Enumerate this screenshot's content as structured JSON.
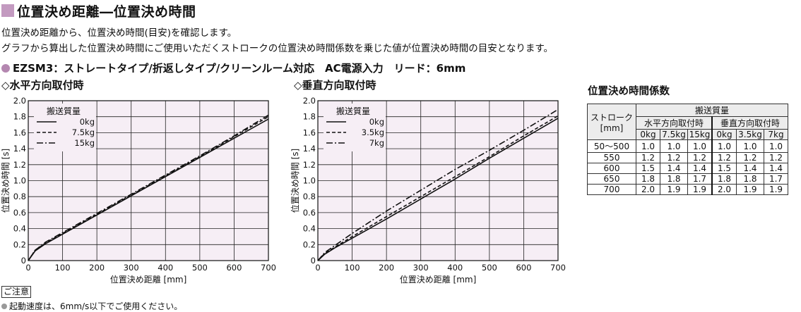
{
  "header": {
    "title": "位置決め距離―位置決め時間",
    "desc1": "位置決め距離から、位置決め時間(目安)を確認します。",
    "desc2": "グラフから算出した位置決め時間にご使用いただくストロークの位置決め時間係数を乗じた値が位置決め時間の目安となります。",
    "model_line": "EZSM3：ストレートタイプ/折返しタイプ/クリーンルーム対応　AC電源入力　リード：6mm"
  },
  "colors": {
    "accent": "#c39ac0",
    "plot_bg": "#f6eef5"
  },
  "chart_data": [
    {
      "type": "line",
      "title": "◇水平方向取付時",
      "xlabel": "位置決め距離 [mm]",
      "ylabel": "位置決め時間 [s]",
      "xlim": [
        0,
        700
      ],
      "ylim": [
        0,
        2.0
      ],
      "xticks": [
        "0",
        "100",
        "200",
        "300",
        "400",
        "500",
        "600",
        "700"
      ],
      "yticks": [
        "0",
        "0.2",
        "0.4",
        "0.6",
        "0.8",
        "1.0",
        "1.2",
        "1.4",
        "1.6",
        "1.8",
        "2.0"
      ],
      "grid": true,
      "legend_title": "搬送質量",
      "legend_position": "top-left",
      "series": [
        {
          "name": "0kg",
          "style": "solid",
          "x": [
            0,
            20,
            50,
            100,
            200,
            300,
            400,
            500,
            600,
            700
          ],
          "y": [
            0,
            0.12,
            0.21,
            0.33,
            0.57,
            0.81,
            1.05,
            1.29,
            1.53,
            1.77
          ]
        },
        {
          "name": "7.5kg",
          "style": "dashed",
          "x": [
            0,
            20,
            50,
            100,
            200,
            300,
            400,
            500,
            600,
            700
          ],
          "y": [
            0,
            0.13,
            0.22,
            0.34,
            0.58,
            0.82,
            1.06,
            1.3,
            1.55,
            1.8
          ]
        },
        {
          "name": "15kg",
          "style": "dashdot",
          "x": [
            0,
            20,
            50,
            100,
            200,
            300,
            400,
            500,
            600,
            700
          ],
          "y": [
            0,
            0.13,
            0.23,
            0.35,
            0.59,
            0.83,
            1.07,
            1.31,
            1.56,
            1.82
          ]
        }
      ]
    },
    {
      "type": "line",
      "title": "◇垂直方向取付時",
      "xlabel": "位置決め距離 [mm]",
      "ylabel": "位置決め時間 [s]",
      "xlim": [
        0,
        700
      ],
      "ylim": [
        0,
        2.0
      ],
      "xticks": [
        "0",
        "100",
        "200",
        "300",
        "400",
        "500",
        "600",
        "700"
      ],
      "yticks": [
        "0",
        "0.2",
        "0.4",
        "0.6",
        "0.8",
        "1.0",
        "1.2",
        "1.4",
        "1.6",
        "1.8",
        "2.0"
      ],
      "grid": true,
      "legend_title": "搬送質量",
      "legend_position": "top-left",
      "series": [
        {
          "name": "0kg",
          "style": "solid",
          "x": [
            0,
            20,
            50,
            100,
            200,
            300,
            400,
            500,
            600,
            700
          ],
          "y": [
            0,
            0.08,
            0.16,
            0.28,
            0.52,
            0.77,
            1.02,
            1.28,
            1.53,
            1.78
          ]
        },
        {
          "name": "3.5kg",
          "style": "dashed",
          "x": [
            0,
            20,
            50,
            100,
            200,
            300,
            400,
            500,
            600,
            700
          ],
          "y": [
            0,
            0.09,
            0.17,
            0.3,
            0.55,
            0.8,
            1.05,
            1.3,
            1.56,
            1.81
          ]
        },
        {
          "name": "7kg",
          "style": "dashdot",
          "x": [
            0,
            20,
            50,
            100,
            200,
            300,
            400,
            500,
            600,
            700
          ],
          "y": [
            0,
            0.1,
            0.19,
            0.34,
            0.62,
            0.88,
            1.14,
            1.38,
            1.63,
            1.89
          ]
        }
      ]
    }
  ],
  "table": {
    "title": "位置決め時間係数",
    "stroke_header": "ストローク",
    "stroke_unit": "[mm]",
    "mass_header": "搬送質量",
    "horizontal_header": "水平方向取付時",
    "vertical_header": "垂直方向取付時",
    "mass_cols": [
      "0kg",
      "7.5kg",
      "15kg",
      "0kg",
      "3.5kg",
      "7kg"
    ],
    "rows": [
      {
        "stroke": "50～500",
        "vals": [
          "1.0",
          "1.0",
          "1.0",
          "1.0",
          "1.0",
          "1.0"
        ]
      },
      {
        "stroke": "550",
        "vals": [
          "1.2",
          "1.2",
          "1.2",
          "1.2",
          "1.2",
          "1.2"
        ]
      },
      {
        "stroke": "600",
        "vals": [
          "1.5",
          "1.4",
          "1.4",
          "1.5",
          "1.4",
          "1.4"
        ]
      },
      {
        "stroke": "650",
        "vals": [
          "1.8",
          "1.8",
          "1.7",
          "1.8",
          "1.8",
          "1.7"
        ]
      },
      {
        "stroke": "700",
        "vals": [
          "2.0",
          "1.9",
          "1.9",
          "2.0",
          "1.9",
          "1.9"
        ]
      }
    ]
  },
  "notes": {
    "label": "ご注意",
    "text": "起動速度は、6mm/s以下でご使用ください。"
  }
}
